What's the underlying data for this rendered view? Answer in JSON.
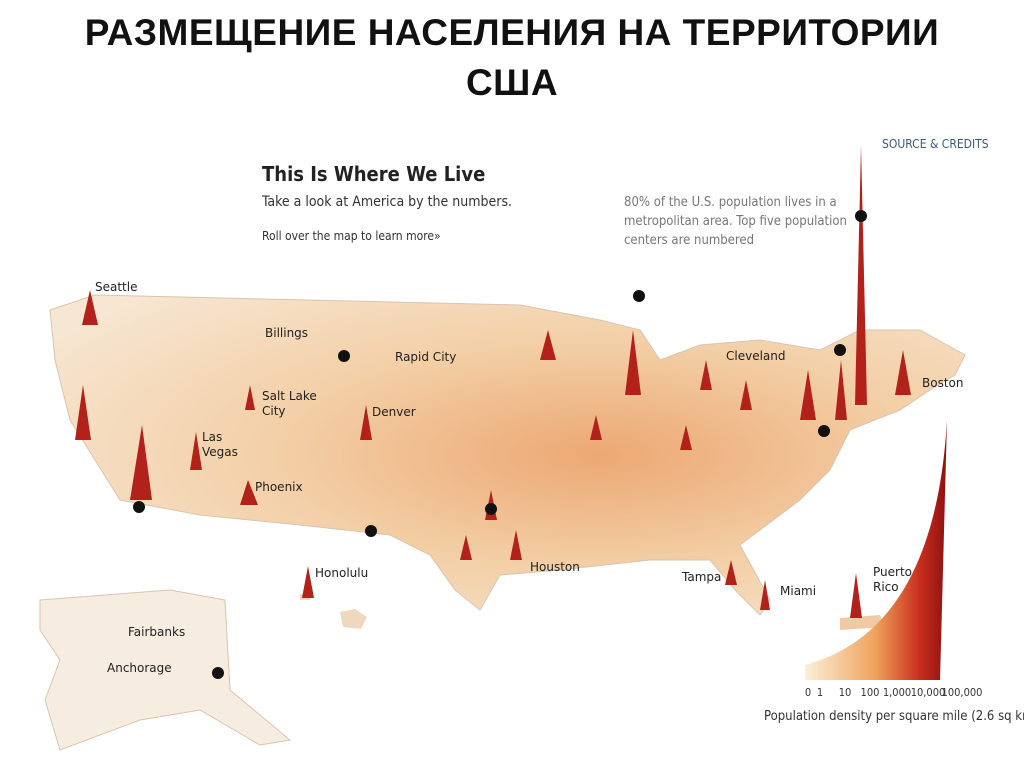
{
  "slide_title": "РАЗМЕЩЕНИЕ НАСЕЛЕНИЯ НА ТЕРРИТОРИИ США",
  "map": {
    "header": "This Is Where We Live",
    "subheader": "Take a look at America by the numbers.",
    "instruction": "Roll over the map to learn more»",
    "source": "SOURCE & CREDITS",
    "note": "80% of the U.S. population lives in a metropolitan area. Top five population centers are numbered",
    "cities": [
      "Seattle",
      "Billings",
      "Rapid City",
      "Salt Lake City",
      "Denver",
      "Las Vegas",
      "Phoenix",
      "Honolulu",
      "Houston",
      "Tampa",
      "Miami",
      "Cleveland",
      "Boston",
      "Puerto Rico",
      "Fairbanks",
      "Anchorage"
    ],
    "legend": {
      "ticks": [
        "0",
        "1",
        "10",
        "100",
        "1,000",
        "10,000",
        "100,000"
      ],
      "title": "Population density per square mile (2.6 sq km)"
    }
  }
}
